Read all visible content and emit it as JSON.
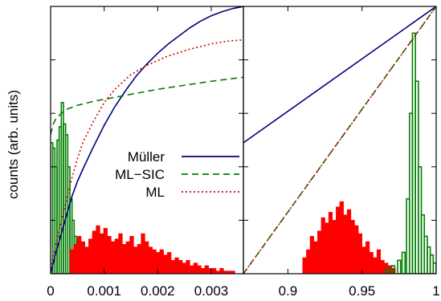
{
  "chart_data": {
    "type": "bar",
    "ylabel": "counts (arb. units)",
    "legend": {
      "placement": "center-right of left panel",
      "entries": [
        {
          "label": "Müller",
          "color": "#00007f",
          "dash": "solid"
        },
        {
          "label": "ML−SIC",
          "color": "#007f00",
          "dash": "dashed"
        },
        {
          "label": "ML",
          "color": "#d00000",
          "dash": "dotted"
        }
      ]
    },
    "panels": [
      {
        "name": "left",
        "xlim": [
          0,
          0.0036
        ],
        "ylim": [
          0,
          1
        ],
        "xticks": [
          {
            "value": 0,
            "label": "0"
          },
          {
            "value": 0.001,
            "label": "0.001"
          },
          {
            "value": 0.002,
            "label": "0.002"
          },
          {
            "value": 0.003,
            "label": "0.003"
          }
        ],
        "curves": [
          {
            "name": "Müller",
            "color": "#00007f",
            "dash": "solid",
            "points": [
              [
                0,
                0
              ],
              [
                5e-05,
                0.04
              ],
              [
                0.0001,
                0.08
              ],
              [
                0.0002,
                0.15
              ],
              [
                0.0003,
                0.22
              ],
              [
                0.0004,
                0.29
              ],
              [
                0.0005,
                0.345
              ],
              [
                0.0006,
                0.39
              ],
              [
                0.0008,
                0.475
              ],
              [
                0.001,
                0.555
              ],
              [
                0.0012,
                0.625
              ],
              [
                0.0014,
                0.685
              ],
              [
                0.0016,
                0.74
              ],
              [
                0.0018,
                0.785
              ],
              [
                0.002,
                0.825
              ],
              [
                0.0022,
                0.86
              ],
              [
                0.0024,
                0.89
              ],
              [
                0.0026,
                0.92
              ],
              [
                0.0028,
                0.945
              ],
              [
                0.003,
                0.965
              ],
              [
                0.0032,
                0.98
              ],
              [
                0.0034,
                0.992
              ],
              [
                0.0036,
                1.0
              ]
            ]
          },
          {
            "name": "ML−SIC",
            "color": "#007f00",
            "dash": "dashed",
            "points": [
              [
                0,
                0.52
              ],
              [
                5e-05,
                0.56
              ],
              [
                0.0001,
                0.58
              ],
              [
                0.0002,
                0.6
              ],
              [
                0.0003,
                0.615
              ],
              [
                0.0005,
                0.63
              ],
              [
                0.0008,
                0.645
              ],
              [
                0.0012,
                0.66
              ],
              [
                0.0016,
                0.675
              ],
              [
                0.002,
                0.69
              ],
              [
                0.0025,
                0.705
              ],
              [
                0.003,
                0.72
              ],
              [
                0.0036,
                0.735
              ]
            ]
          },
          {
            "name": "ML",
            "color": "#d00000",
            "dash": "dotted",
            "points": [
              [
                0,
                0.02
              ],
              [
                0.0001,
                0.11
              ],
              [
                0.0002,
                0.2
              ],
              [
                0.0003,
                0.28
              ],
              [
                0.0004,
                0.36
              ],
              [
                0.0005,
                0.43
              ],
              [
                0.0006,
                0.49
              ],
              [
                0.0008,
                0.57
              ],
              [
                0.001,
                0.64
              ],
              [
                0.0012,
                0.69
              ],
              [
                0.0015,
                0.745
              ],
              [
                0.0018,
                0.78
              ],
              [
                0.0022,
                0.815
              ],
              [
                0.0026,
                0.84
              ],
              [
                0.003,
                0.86
              ],
              [
                0.0033,
                0.87
              ],
              [
                0.0036,
                0.875
              ]
            ]
          }
        ],
        "histograms": [
          {
            "name": "green",
            "color": "#007f00",
            "fill": "none",
            "bins": [
              [
                0.0,
                0.49
              ],
              [
                4e-05,
                0.47
              ],
              [
                8e-05,
                0.4
              ],
              [
                0.00012,
                0.5
              ],
              [
                0.00016,
                0.55
              ],
              [
                0.0002,
                0.64
              ],
              [
                0.00024,
                0.56
              ],
              [
                0.00028,
                0.52
              ],
              [
                0.00032,
                0.4
              ],
              [
                0.00036,
                0.28
              ],
              [
                0.0004,
                0.2
              ],
              [
                0.00044,
                0.14
              ],
              [
                0.00048,
                0.12
              ],
              [
                0.00052,
                0.1
              ],
              [
                0.00056,
                0.09
              ],
              [
                0.0006,
                0.08
              ],
              [
                0.00064,
                0.07
              ],
              [
                0.00068,
                0.06
              ],
              [
                0.00072,
                0.05
              ],
              [
                0.00076,
                0.04
              ],
              [
                0.0008,
                0.04
              ],
              [
                0.00084,
                0.03
              ],
              [
                0.00088,
                0.03
              ],
              [
                0.00092,
                0.02
              ]
            ],
            "bin_width": 4e-05
          },
          {
            "name": "red",
            "color": "#ff0000",
            "fill": "solid",
            "bins": [
              [
                0.00036,
                0.09
              ],
              [
                0.00043,
                0.11
              ],
              [
                0.0005,
                0.14
              ],
              [
                0.00057,
                0.12
              ],
              [
                0.00064,
                0.1
              ],
              [
                0.00071,
                0.13
              ],
              [
                0.00078,
                0.16
              ],
              [
                0.00085,
                0.18
              ],
              [
                0.00092,
                0.15
              ],
              [
                0.00099,
                0.17
              ],
              [
                0.00106,
                0.14
              ],
              [
                0.00113,
                0.12
              ],
              [
                0.0012,
                0.13
              ],
              [
                0.00127,
                0.15
              ],
              [
                0.00134,
                0.11
              ],
              [
                0.00141,
                0.12
              ],
              [
                0.00148,
                0.14
              ],
              [
                0.00155,
                0.1
              ],
              [
                0.00162,
                0.11
              ],
              [
                0.00169,
                0.15
              ],
              [
                0.00176,
                0.12
              ],
              [
                0.00183,
                0.1
              ],
              [
                0.0019,
                0.09
              ],
              [
                0.00197,
                0.08
              ],
              [
                0.00204,
                0.09
              ],
              [
                0.00211,
                0.07
              ],
              [
                0.00218,
                0.08
              ],
              [
                0.00225,
                0.05
              ],
              [
                0.00232,
                0.06
              ],
              [
                0.00239,
                0.05
              ],
              [
                0.00246,
                0.04
              ],
              [
                0.00253,
                0.05
              ],
              [
                0.0026,
                0.03
              ],
              [
                0.00267,
                0.04
              ],
              [
                0.00274,
                0.03
              ],
              [
                0.00281,
                0.02
              ],
              [
                0.00288,
                0.03
              ],
              [
                0.00295,
                0.02
              ],
              [
                0.00302,
                0.02
              ],
              [
                0.00309,
                0.01
              ],
              [
                0.00316,
                0.02
              ],
              [
                0.00323,
                0.01
              ],
              [
                0.0033,
                0.01
              ],
              [
                0.00337,
                0.01
              ]
            ],
            "bin_width": 7e-05
          }
        ]
      },
      {
        "name": "right",
        "xlim": [
          0.87,
          1.0
        ],
        "ylim": [
          0,
          1
        ],
        "xticks": [
          {
            "value": 0.9,
            "label": "0.9"
          },
          {
            "value": 0.95,
            "label": "0.95"
          },
          {
            "value": 1.0,
            "label": "1"
          }
        ],
        "curves": [
          {
            "name": "Müller",
            "color": "#00007f",
            "dash": "solid",
            "points": [
              [
                0.87,
                0.49
              ],
              [
                1.0,
                1.0
              ]
            ]
          },
          {
            "name": "ML−SIC",
            "color": "#007f00",
            "dash": "dashed",
            "points": [
              [
                0.87,
                0.0
              ],
              [
                1.0,
                1.0
              ]
            ]
          },
          {
            "name": "ML",
            "color": "#d00000",
            "dash": "dotted",
            "points": [
              [
                0.87,
                0.0
              ],
              [
                1.0,
                1.0
              ]
            ]
          }
        ],
        "histograms": [
          {
            "name": "red",
            "color": "#ff0000",
            "fill": "solid",
            "bins": [
              [
                0.91,
                0.06
              ],
              [
                0.9125,
                0.09
              ],
              [
                0.915,
                0.14
              ],
              [
                0.9175,
                0.12
              ],
              [
                0.92,
                0.16
              ],
              [
                0.9225,
                0.21
              ],
              [
                0.925,
                0.19
              ],
              [
                0.9275,
                0.23
              ],
              [
                0.93,
                0.2
              ],
              [
                0.9325,
                0.25
              ],
              [
                0.935,
                0.27
              ],
              [
                0.9375,
                0.22
              ],
              [
                0.94,
                0.24
              ],
              [
                0.9425,
                0.2
              ],
              [
                0.945,
                0.18
              ],
              [
                0.9475,
                0.15
              ],
              [
                0.95,
                0.1
              ],
              [
                0.9525,
                0.12
              ],
              [
                0.955,
                0.08
              ],
              [
                0.9575,
                0.06
              ],
              [
                0.96,
                0.09
              ],
              [
                0.9625,
                0.05
              ],
              [
                0.965,
                0.04
              ],
              [
                0.9675,
                0.03
              ],
              [
                0.97,
                0.02
              ]
            ],
            "bin_width": 0.0025
          },
          {
            "name": "green",
            "color": "#007f00",
            "fill": "none",
            "bins": [
              [
                0.966,
                0.02
              ],
              [
                0.97,
                0.03
              ],
              [
                0.974,
                0.05
              ],
              [
                0.977,
                0.08
              ],
              [
                0.98,
                0.28
              ],
              [
                0.982,
                0.6
              ],
              [
                0.984,
                0.9
              ],
              [
                0.986,
                0.72
              ],
              [
                0.988,
                0.4
              ],
              [
                0.99,
                0.22
              ],
              [
                0.992,
                0.14
              ],
              [
                0.994,
                0.1
              ],
              [
                0.996,
                0.07
              ],
              [
                0.998,
                0.04
              ]
            ],
            "bin_width": 0.002
          }
        ]
      }
    ]
  }
}
